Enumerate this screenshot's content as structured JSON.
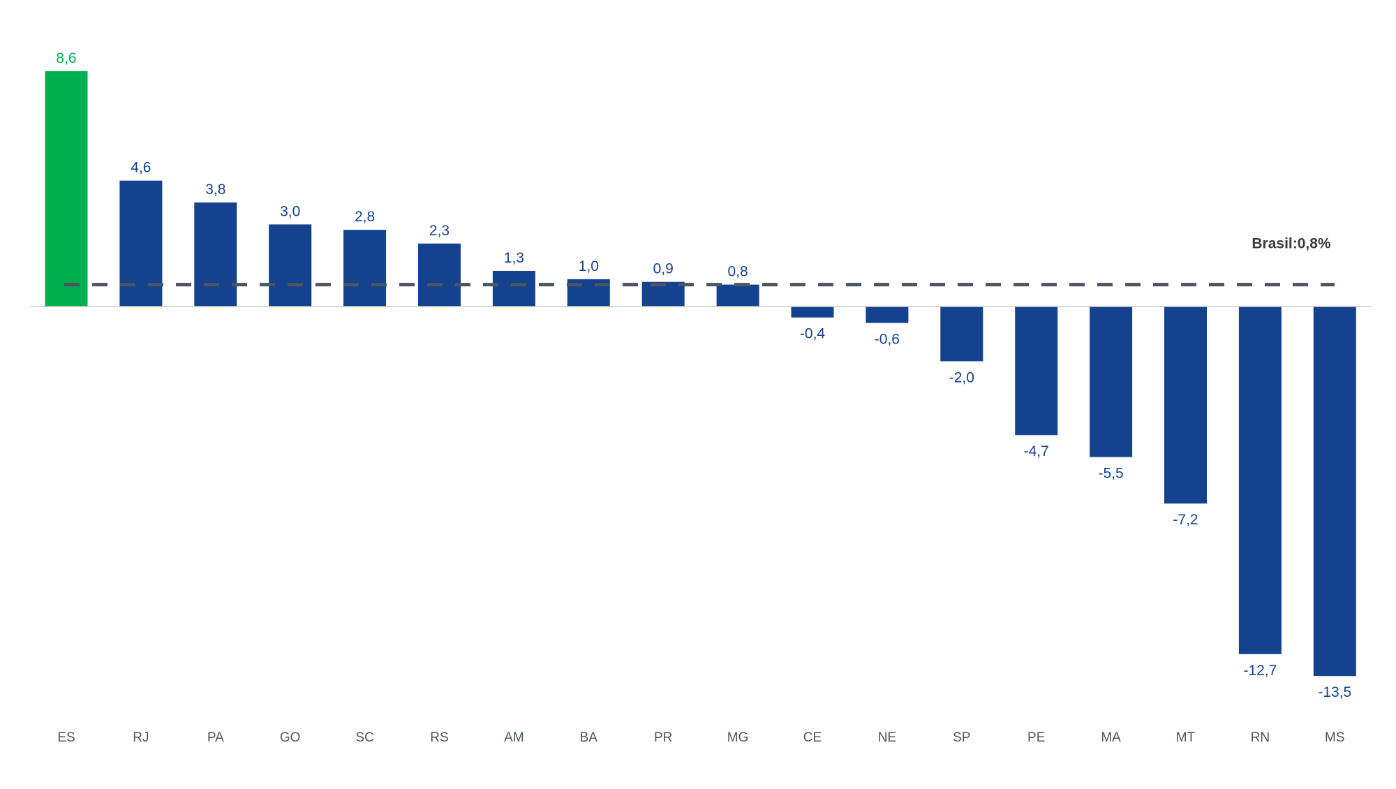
{
  "chart_data": {
    "type": "bar",
    "categories": [
      "ES",
      "RJ",
      "PA",
      "GO",
      "SC",
      "RS",
      "AM",
      "BA",
      "PR",
      "MG",
      "CE",
      "NE",
      "SP",
      "PE",
      "MA",
      "MT",
      "RN",
      "MS"
    ],
    "values": [
      8.6,
      4.6,
      3.8,
      3.0,
      2.8,
      2.3,
      1.3,
      1.0,
      0.9,
      0.8,
      -0.4,
      -0.6,
      -2.0,
      -4.7,
      -5.5,
      -7.2,
      -12.7,
      -13.5
    ],
    "value_labels": [
      "8,6",
      "4,6",
      "3,8",
      "3,0",
      "2,8",
      "2,3",
      "1,3",
      "1,0",
      "0,9",
      "0,8",
      "-0,4",
      "-0,6",
      "-2,0",
      "-4,7",
      "-5,5",
      "-7,2",
      "-12,7",
      "-13,5"
    ],
    "highlight_category": "ES",
    "colors": {
      "highlight": "#00b04f",
      "bars": "#14428f",
      "reference_line": "#4b5563",
      "baseline": "#cccccc"
    },
    "reference_line": {
      "value": 0.8,
      "label": "Brasil:0,8%",
      "style": "dashed"
    },
    "ylim": [
      -15.2,
      10.8
    ],
    "grid": false,
    "legend": "none",
    "title": "",
    "xlabel": "",
    "ylabel": ""
  }
}
